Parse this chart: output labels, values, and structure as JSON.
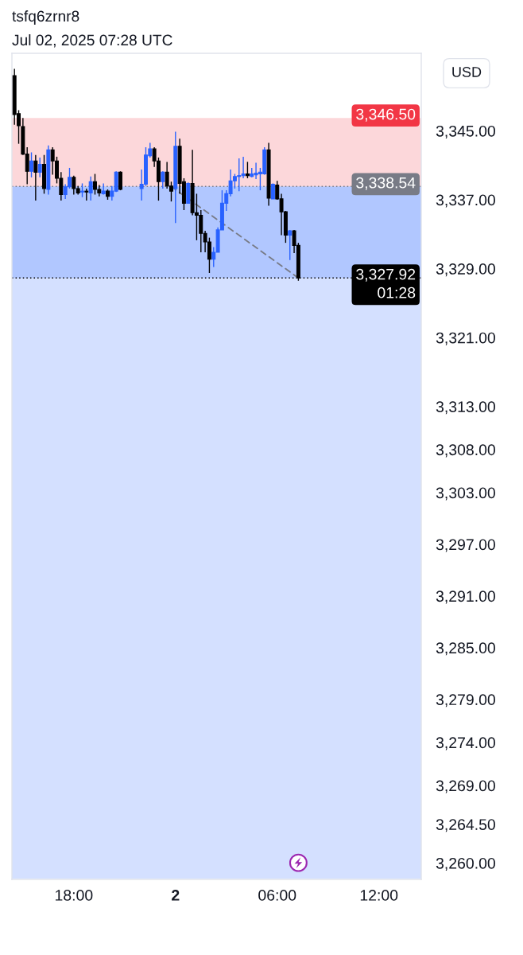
{
  "chart_data": {
    "type": "candlestick",
    "title": "tsfq6zrnr8",
    "subtitle": "Jul 02, 2025 07:28 UTC",
    "ylabel": "USD",
    "x": [
      "2025-07-01T14:30",
      "2025-07-01T14:45",
      "2025-07-01T15:00",
      "2025-07-01T15:15",
      "2025-07-01T15:30",
      "2025-07-01T15:45",
      "2025-07-01T16:00",
      "2025-07-01T16:15",
      "2025-07-01T16:30",
      "2025-07-01T16:45",
      "2025-07-01T17:00",
      "2025-07-01T17:15",
      "2025-07-01T17:30",
      "2025-07-01T17:45",
      "2025-07-01T18:00",
      "2025-07-01T18:15",
      "2025-07-01T18:30",
      "2025-07-01T18:45",
      "2025-07-01T19:00",
      "2025-07-01T19:15",
      "2025-07-01T19:30",
      "2025-07-01T19:45",
      "2025-07-01T20:00",
      "2025-07-01T20:15",
      "2025-07-01T20:30",
      "2025-07-01T20:45",
      "2025-07-01T22:00",
      "2025-07-01T22:15",
      "2025-07-01T22:30",
      "2025-07-01T22:45",
      "2025-07-01T23:00",
      "2025-07-01T23:15",
      "2025-07-01T23:30",
      "2025-07-01T23:45",
      "2025-07-02T00:00",
      "2025-07-02T00:15",
      "2025-07-02T00:30",
      "2025-07-02T00:45",
      "2025-07-02T01:00",
      "2025-07-02T01:15",
      "2025-07-02T01:30",
      "2025-07-02T01:45",
      "2025-07-02T02:00",
      "2025-07-02T02:15",
      "2025-07-02T02:30",
      "2025-07-02T02:45",
      "2025-07-02T03:00",
      "2025-07-02T03:15",
      "2025-07-02T03:30",
      "2025-07-02T03:45",
      "2025-07-02T04:00",
      "2025-07-02T04:15",
      "2025-07-02T04:30",
      "2025-07-02T04:45",
      "2025-07-02T05:00",
      "2025-07-02T05:15",
      "2025-07-02T05:30",
      "2025-07-02T05:45",
      "2025-07-02T06:00",
      "2025-07-02T06:15",
      "2025-07-02T06:30",
      "2025-07-02T06:45",
      "2025-07-02T07:00",
      "2025-07-02T07:15"
    ],
    "ohlc": [
      [
        3351.4,
        3352.2,
        3345.7,
        3346.9
      ],
      [
        3347.0,
        3347.4,
        3343.5,
        3345.6
      ],
      [
        3345.5,
        3346.5,
        3342.2,
        3342.3
      ],
      [
        3342.3,
        3343.1,
        3338.8,
        3340.3
      ],
      [
        3340.3,
        3342.5,
        3339.6,
        3341.5
      ],
      [
        3341.5,
        3342.2,
        3336.9,
        3340.2
      ],
      [
        3340.2,
        3341.9,
        3339.6,
        3341.1
      ],
      [
        3341.1,
        3342.2,
        3337.7,
        3338.3
      ],
      [
        3338.2,
        3343.3,
        3337.6,
        3342.8
      ],
      [
        3342.8,
        3343.1,
        3339.9,
        3341.5
      ],
      [
        3341.5,
        3342.0,
        3338.9,
        3339.5
      ],
      [
        3339.5,
        3340.2,
        3336.9,
        3337.6
      ],
      [
        3337.6,
        3338.8,
        3337.1,
        3338.5
      ],
      [
        3338.5,
        3340.7,
        3338.3,
        3339.6
      ],
      [
        3339.6,
        3339.8,
        3337.6,
        3338.3
      ],
      [
        3338.3,
        3338.6,
        3337.6,
        3337.8
      ],
      [
        3337.9,
        3338.9,
        3337.3,
        3338.0
      ],
      [
        3338.0,
        3338.3,
        3336.9,
        3337.9
      ],
      [
        3337.8,
        3339.7,
        3336.9,
        3339.1
      ],
      [
        3339.1,
        3340.0,
        3337.6,
        3338.2
      ],
      [
        3338.2,
        3338.7,
        3337.4,
        3337.8
      ],
      [
        3337.7,
        3338.9,
        3337.6,
        3338.0
      ],
      [
        3338.0,
        3338.2,
        3337.0,
        3337.4
      ],
      [
        3337.4,
        3338.6,
        3336.9,
        3338.0
      ],
      [
        3338.0,
        3340.3,
        3337.9,
        3340.2
      ],
      [
        3340.2,
        3340.3,
        3338.1,
        3338.2
      ],
      [
        3338.3,
        3340.5,
        3336.9,
        3338.8
      ],
      [
        3338.8,
        3343.1,
        3338.6,
        3342.2
      ],
      [
        3342.1,
        3343.6,
        3341.9,
        3342.9
      ],
      [
        3342.9,
        3343.1,
        3340.8,
        3341.5
      ],
      [
        3341.5,
        3341.9,
        3336.9,
        3339.1
      ],
      [
        3339.1,
        3340.3,
        3338.3,
        3340.2
      ],
      [
        3340.2,
        3341.4,
        3338.3,
        3338.6
      ],
      [
        3338.6,
        3339.1,
        3336.8,
        3338.0
      ],
      [
        3338.3,
        3344.9,
        3334.3,
        3343.2
      ],
      [
        3343.2,
        3344.1,
        3337.7,
        3338.9
      ],
      [
        3339.1,
        3339.5,
        3335.8,
        3336.6
      ],
      [
        3336.6,
        3339.0,
        3336.6,
        3338.9
      ],
      [
        3338.9,
        3342.8,
        3335.2,
        3335.5
      ],
      [
        3335.5,
        3337.7,
        3332.3,
        3335.2
      ],
      [
        3335.2,
        3335.8,
        3330.9,
        3333.1
      ],
      [
        3333.1,
        3333.4,
        3330.9,
        3332.1
      ],
      [
        3332.1,
        3332.6,
        3328.5,
        3330.1
      ],
      [
        3330.1,
        3331.5,
        3329.2,
        3330.9
      ],
      [
        3330.9,
        3333.8,
        3330.9,
        3333.5
      ],
      [
        3333.5,
        3338.1,
        3333.5,
        3336.6
      ],
      [
        3336.6,
        3338.1,
        3335.7,
        3337.7
      ],
      [
        3337.7,
        3340.5,
        3337.4,
        3339.2
      ],
      [
        3339.2,
        3340.0,
        3338.3,
        3339.7
      ],
      [
        3339.7,
        3341.8,
        3338.0,
        3339.8
      ],
      [
        3339.8,
        3342.0,
        3339.5,
        3340.0
      ],
      [
        3340.0,
        3341.4,
        3339.5,
        3339.8
      ],
      [
        3339.7,
        3340.7,
        3339.6,
        3340.0
      ],
      [
        3339.9,
        3341.3,
        3339.4,
        3340.1
      ],
      [
        3340.0,
        3340.7,
        3338.1,
        3340.2
      ],
      [
        3340.0,
        3343.1,
        3339.9,
        3342.8
      ],
      [
        3342.8,
        3343.6,
        3336.3,
        3337.2
      ],
      [
        3337.1,
        3338.9,
        3337.1,
        3338.8
      ],
      [
        3338.7,
        3339.2,
        3337.0,
        3337.1
      ],
      [
        3337.1,
        3337.7,
        3332.9,
        3335.6
      ],
      [
        3335.6,
        3335.7,
        3332.0,
        3332.9
      ],
      [
        3332.9,
        3333.5,
        3330.0,
        3333.4
      ],
      [
        3333.4,
        3333.5,
        3330.8,
        3331.7
      ],
      [
        3331.7,
        3332.0,
        3327.6,
        3327.92
      ]
    ],
    "colors": [
      "#000000",
      "#000000",
      "#000000",
      "#000000",
      "#2962ff",
      "#000000",
      "#2962ff",
      "#000000",
      "#2962ff",
      "#000000",
      "#000000",
      "#000000",
      "#2962ff",
      "#2962ff",
      "#000000",
      "#000000",
      "#2962ff",
      "#000000",
      "#2962ff",
      "#000000",
      "#000000",
      "#2962ff",
      "#000000",
      "#2962ff",
      "#2962ff",
      "#000000",
      "#2962ff",
      "#2962ff",
      "#2962ff",
      "#000000",
      "#000000",
      "#2962ff",
      "#000000",
      "#000000",
      "#2962ff",
      "#000000",
      "#000000",
      "#2962ff",
      "#000000",
      "#000000",
      "#000000",
      "#000000",
      "#000000",
      "#2962ff",
      "#2962ff",
      "#2962ff",
      "#2962ff",
      "#2962ff",
      "#2962ff",
      "#2962ff",
      "#2962ff",
      "#000000",
      "#2962ff",
      "#2962ff",
      "#2962ff",
      "#2962ff",
      "#000000",
      "#2962ff",
      "#000000",
      "#000000",
      "#000000",
      "#2962ff",
      "#000000",
      "#000000"
    ],
    "series": [
      {
        "type": "line",
        "x": [
          "2025-07-01T23:45",
          "2025-07-02T07:15"
        ],
        "values": [
          3338.54,
          3327.92
        ],
        "color": "#787b86",
        "line_style": "dashed"
      }
    ],
    "xlim": [
      "2025-07-01T14:21",
      "2025-07-02T14:30"
    ],
    "xticks": [
      {
        "value": "2025-07-01T18:00",
        "label": "18:00"
      },
      {
        "value": "2025-07-02",
        "label": "2"
      },
      {
        "value": "2025-07-02T06:00",
        "label": "06:00"
      },
      {
        "value": "2025-07-02T12:00",
        "label": "12:00"
      }
    ],
    "ylim": [
      3258.1,
      3354
    ],
    "yticks": [
      {
        "value": 3345,
        "label": "3,345.00"
      },
      {
        "value": 3337,
        "label": "3,337.00"
      },
      {
        "value": 3329,
        "label": "3,329.00"
      },
      {
        "value": 3321,
        "label": "3,321.00"
      },
      {
        "value": 3313,
        "label": "3,313.00"
      },
      {
        "value": 3308,
        "label": "3,308.00"
      },
      {
        "value": 3303,
        "label": "3,303.00"
      },
      {
        "value": 3297,
        "label": "3,297.00"
      },
      {
        "value": 3291,
        "label": "3,291.00"
      },
      {
        "value": 3285,
        "label": "3,285.00"
      },
      {
        "value": 3279,
        "label": "3,279.00"
      },
      {
        "value": 3274,
        "label": "3,274.00"
      },
      {
        "value": 3269,
        "label": "3,269.00"
      },
      {
        "value": 3264.5,
        "label": "3,264.50"
      },
      {
        "value": 3260,
        "label": "3,260.00"
      }
    ],
    "bands": [
      {
        "axis": "y",
        "from": 3258.2,
        "to": 3338.54,
        "color": "#2962ff"
      },
      {
        "axis": "y",
        "from": 3327.92,
        "to": 3338.54,
        "color": "#2962ff"
      },
      {
        "axis": "y",
        "from": 3338.54,
        "to": 3346.5,
        "label": "3,346.50",
        "color": "#f23645"
      }
    ],
    "ref_lines": [
      {
        "axis": "y",
        "value": 3338.54,
        "label": "3,338.54",
        "color": "#787b86",
        "line_style": "dotted"
      },
      {
        "axis": "y",
        "value": 3327.92,
        "label": "3,327.92\n01:28",
        "color": "#000000",
        "line_style": "dotted"
      }
    ]
  }
}
